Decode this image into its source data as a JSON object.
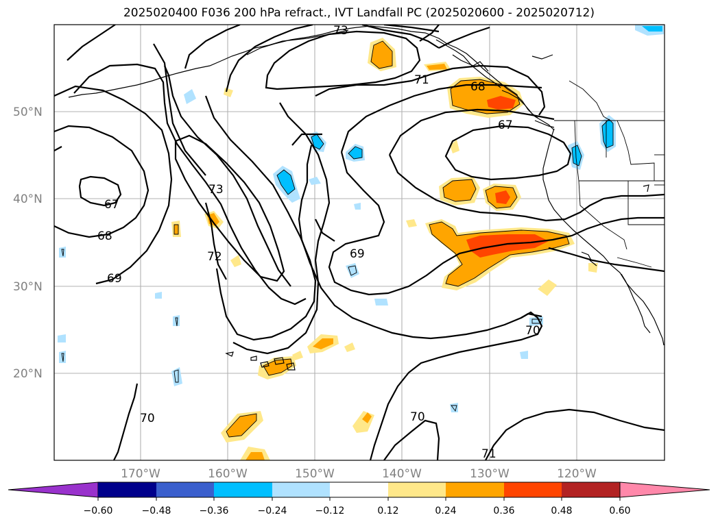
{
  "title": "2025020400 F036 200 hPa refract., IVT Landfall PC (2025020600 - 2025020712)",
  "lat_labels": [
    "50°N",
    "40°N",
    "30°N",
    "20°N"
  ],
  "lon_labels": [
    "170°W",
    "160°W",
    "150°W",
    "140°W",
    "130°W",
    "120°W"
  ],
  "contour_labels": [
    "73",
    "71",
    "68",
    "67",
    "67",
    "68",
    "73",
    "72",
    "69",
    "69",
    "70",
    "70",
    "70",
    "71"
  ],
  "colorbar": {
    "ticks": [
      "−0.60",
      "−0.48",
      "−0.36",
      "−0.24",
      "−0.12",
      "0.12",
      "0.24",
      "0.36",
      "0.48",
      "0.60"
    ],
    "colors": {
      "under": "#9932cc",
      "bins": [
        "#00008b",
        "#3a5fcd",
        "#00bfff",
        "#b0e2ff",
        "#ffffff",
        "#ffe88a",
        "#ffa500",
        "#ff4500",
        "#b22222"
      ],
      "over": "#ff88aa"
    }
  }
}
